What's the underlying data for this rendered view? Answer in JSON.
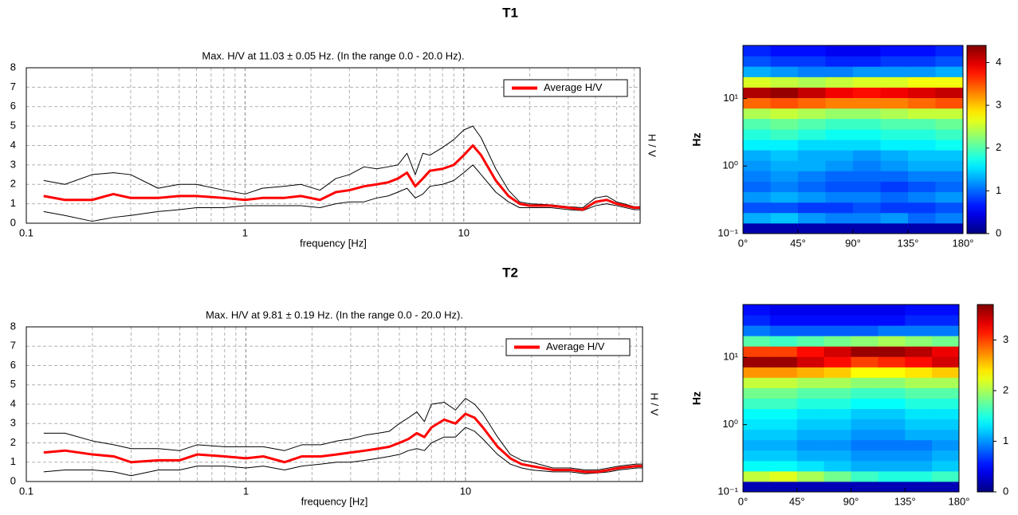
{
  "headings": [
    "T1",
    "T2"
  ],
  "chart_data": [
    {
      "type": "line",
      "title": "Max. H/V at 11.03 ± 0.05 Hz. (In the range 0.0 - 20.0 Hz).",
      "xlabel": "frequency [Hz]",
      "ylabel": "H / V",
      "xscale": "log",
      "xlim": [
        0.1,
        64
      ],
      "xticks": [
        0.1,
        1,
        10
      ],
      "xminorticks": [
        0.2,
        0.3,
        0.4,
        0.5,
        0.6,
        0.7,
        0.8,
        0.9,
        2,
        3,
        4,
        5,
        6,
        7,
        8,
        9,
        20,
        30,
        40,
        50,
        60
      ],
      "ylim": [
        0,
        8
      ],
      "yticks": [
        0,
        1,
        2,
        3,
        4,
        5,
        6,
        7,
        8
      ],
      "grid": true,
      "legend": "upper right",
      "x": [
        0.12,
        0.15,
        0.2,
        0.25,
        0.3,
        0.4,
        0.5,
        0.6,
        0.8,
        1,
        1.2,
        1.5,
        1.8,
        2.2,
        2.6,
        3,
        3.5,
        4,
        4.5,
        5,
        5.5,
        6,
        6.5,
        7,
        8,
        9,
        10,
        11,
        12,
        14,
        16,
        18,
        20,
        25,
        30,
        35,
        40,
        45,
        50,
        60,
        64
      ],
      "series": [
        {
          "color": "#000000",
          "values": [
            0.6,
            0.4,
            0.1,
            0.3,
            0.4,
            0.6,
            0.7,
            0.8,
            0.8,
            0.9,
            0.9,
            0.9,
            0.9,
            0.8,
            1.0,
            1.1,
            1.1,
            1.3,
            1.4,
            1.6,
            1.8,
            1.3,
            1.5,
            1.9,
            2.0,
            2.2,
            2.6,
            3.0,
            2.5,
            1.6,
            1.1,
            0.8,
            0.8,
            0.8,
            0.7,
            0.65,
            0.9,
            1.0,
            0.9,
            0.7,
            0.7
          ]
        },
        {
          "color": "#000000",
          "values": [
            2.2,
            2.0,
            2.5,
            2.6,
            2.5,
            1.8,
            2.0,
            2.0,
            1.7,
            1.5,
            1.8,
            1.9,
            2.0,
            1.7,
            2.3,
            2.5,
            2.9,
            2.8,
            2.9,
            3.0,
            3.6,
            2.5,
            3.6,
            3.5,
            3.9,
            4.3,
            4.8,
            5.0,
            4.4,
            2.8,
            1.7,
            1.1,
            1.0,
            0.95,
            0.85,
            0.8,
            1.3,
            1.4,
            1.1,
            0.85,
            0.85
          ]
        },
        {
          "name": "Average H/V",
          "color": "#ff0000",
          "values": [
            1.4,
            1.2,
            1.2,
            1.5,
            1.3,
            1.3,
            1.4,
            1.4,
            1.3,
            1.2,
            1.3,
            1.3,
            1.4,
            1.2,
            1.6,
            1.7,
            1.9,
            2.0,
            2.1,
            2.3,
            2.6,
            1.9,
            2.3,
            2.7,
            2.8,
            3.0,
            3.5,
            4.0,
            3.5,
            2.2,
            1.4,
            1.0,
            0.9,
            0.9,
            0.8,
            0.7,
            1.1,
            1.2,
            1.0,
            0.8,
            0.8
          ]
        }
      ]
    },
    {
      "type": "heatmap",
      "ylabel": "Hz",
      "yscale": "log",
      "colormap": "jet",
      "xlim": [
        0,
        180
      ],
      "xticks": [
        {
          "value": 0,
          "label": "0°"
        },
        {
          "value": 45,
          "label": "45°"
        },
        {
          "value": 90,
          "label": "90°"
        },
        {
          "value": 135,
          "label": "135°"
        },
        {
          "value": 180,
          "label": "180°"
        }
      ],
      "ylim": [
        0.1,
        61.1
      ],
      "yticks": [
        {
          "value": 0.1,
          "label": "10⁻¹"
        },
        {
          "value": 1,
          "label": "10⁰"
        },
        {
          "value": 10,
          "label": "10¹"
        }
      ],
      "zlim": [
        0,
        4.4
      ],
      "zticks": [
        0,
        1,
        2,
        3,
        4
      ],
      "xbins": [
        0,
        22.5,
        45,
        67.5,
        90,
        112.5,
        135,
        157.5,
        180
      ],
      "ybins": [
        0.1,
        0.143,
        0.204,
        0.291,
        0.416,
        0.594,
        0.849,
        1.21,
        1.73,
        2.47,
        3.53,
        5.05,
        7.2,
        10.3,
        14.7,
        21.0,
        30.0,
        42.8,
        61.1
      ],
      "z": [
        [
          0.2,
          0.2,
          0.2,
          0.2,
          0.2,
          0.2,
          0.2,
          0.2
        ],
        [
          1.3,
          1.4,
          1.2,
          1.1,
          1.1,
          1.2,
          1.0,
          1.1
        ],
        [
          0.9,
          0.9,
          0.8,
          0.8,
          0.9,
          0.8,
          0.8,
          0.9
        ],
        [
          1.2,
          1.3,
          1.2,
          1.1,
          1.1,
          1.0,
          1.1,
          1.2
        ],
        [
          1.0,
          1.1,
          1.0,
          0.9,
          0.9,
          0.8,
          0.9,
          1.0
        ],
        [
          1.1,
          1.2,
          1.1,
          1.0,
          1.0,
          1.0,
          1.1,
          1.1
        ],
        [
          1.2,
          1.3,
          1.3,
          1.2,
          1.1,
          1.2,
          1.3,
          1.3
        ],
        [
          1.3,
          1.4,
          1.3,
          1.3,
          1.2,
          1.3,
          1.4,
          1.4
        ],
        [
          1.6,
          1.6,
          1.5,
          1.5,
          1.5,
          1.6,
          1.6,
          1.7
        ],
        [
          1.8,
          1.9,
          1.8,
          1.7,
          1.7,
          1.8,
          1.8,
          1.9
        ],
        [
          2.0,
          2.1,
          2.0,
          1.9,
          1.9,
          2.0,
          2.0,
          2.1
        ],
        [
          2.4,
          2.5,
          2.4,
          2.3,
          2.3,
          2.4,
          2.5,
          2.5
        ],
        [
          3.4,
          3.5,
          3.4,
          3.3,
          3.3,
          3.3,
          3.4,
          3.5
        ],
        [
          4.2,
          4.3,
          4.1,
          3.9,
          3.8,
          3.9,
          4.0,
          4.1
        ],
        [
          2.6,
          2.5,
          2.4,
          2.5,
          2.6,
          2.6,
          2.7,
          2.7
        ],
        [
          1.3,
          1.2,
          1.1,
          1.1,
          1.2,
          1.2,
          1.2,
          1.3
        ],
        [
          0.9,
          0.8,
          0.8,
          0.7,
          0.7,
          0.8,
          0.8,
          0.9
        ],
        [
          0.7,
          0.6,
          0.6,
          0.5,
          0.5,
          0.6,
          0.6,
          0.7
        ]
      ]
    },
    {
      "type": "line",
      "title": "Max. H/V at 9.81 ± 0.19 Hz. (In the range 0.0 - 20.0 Hz).",
      "xlabel": "frequency [Hz]",
      "ylabel": "H / V",
      "xscale": "log",
      "xlim": [
        0.1,
        64
      ],
      "xticks": [
        0.1,
        1,
        10
      ],
      "xminorticks": [
        0.2,
        0.3,
        0.4,
        0.5,
        0.6,
        0.7,
        0.8,
        0.9,
        2,
        3,
        4,
        5,
        6,
        7,
        8,
        9,
        20,
        30,
        40,
        50,
        60
      ],
      "ylim": [
        0,
        8
      ],
      "yticks": [
        0,
        1,
        2,
        3,
        4,
        5,
        6,
        7,
        8
      ],
      "grid": true,
      "legend": "upper right",
      "x": [
        0.12,
        0.15,
        0.2,
        0.25,
        0.3,
        0.4,
        0.5,
        0.6,
        0.8,
        1,
        1.2,
        1.5,
        1.8,
        2.2,
        2.6,
        3,
        3.5,
        4,
        4.5,
        5,
        5.5,
        6,
        6.5,
        7,
        8,
        9,
        10,
        11,
        12,
        14,
        16,
        18,
        20,
        25,
        30,
        35,
        40,
        45,
        50,
        60,
        64
      ],
      "series": [
        {
          "color": "#000000",
          "values": [
            0.5,
            0.6,
            0.6,
            0.5,
            0.3,
            0.6,
            0.6,
            0.8,
            0.8,
            0.7,
            0.8,
            0.6,
            0.8,
            0.9,
            1.0,
            1.0,
            1.1,
            1.2,
            1.3,
            1.4,
            1.6,
            1.7,
            1.6,
            2.0,
            2.3,
            2.3,
            2.8,
            2.6,
            2.2,
            1.4,
            0.9,
            0.7,
            0.6,
            0.5,
            0.5,
            0.4,
            0.45,
            0.5,
            0.6,
            0.7,
            0.7
          ]
        },
        {
          "color": "#000000",
          "values": [
            2.5,
            2.5,
            2.1,
            1.9,
            1.7,
            1.7,
            1.6,
            1.9,
            1.8,
            1.8,
            1.8,
            1.6,
            1.9,
            1.9,
            2.1,
            2.2,
            2.4,
            2.5,
            2.6,
            3.0,
            3.3,
            3.6,
            3.1,
            4.0,
            4.1,
            3.7,
            4.3,
            4.0,
            3.5,
            2.3,
            1.4,
            1.1,
            1.0,
            0.7,
            0.7,
            0.6,
            0.6,
            0.7,
            0.8,
            0.9,
            0.9
          ]
        },
        {
          "name": "Average H/V",
          "color": "#ff0000",
          "values": [
            1.5,
            1.6,
            1.4,
            1.3,
            1.0,
            1.1,
            1.1,
            1.4,
            1.3,
            1.2,
            1.3,
            1.0,
            1.3,
            1.3,
            1.4,
            1.5,
            1.6,
            1.7,
            1.8,
            2.0,
            2.2,
            2.5,
            2.3,
            2.8,
            3.2,
            3.0,
            3.5,
            3.3,
            2.8,
            1.8,
            1.2,
            0.9,
            0.8,
            0.6,
            0.6,
            0.5,
            0.5,
            0.6,
            0.7,
            0.8,
            0.8
          ]
        }
      ]
    },
    {
      "type": "heatmap",
      "ylabel": "Hz",
      "yscale": "log",
      "colormap": "jet",
      "xlim": [
        0,
        180
      ],
      "xticks": [
        {
          "value": 0,
          "label": "0°"
        },
        {
          "value": 45,
          "label": "45°"
        },
        {
          "value": 90,
          "label": "90°"
        },
        {
          "value": 135,
          "label": "135°"
        },
        {
          "value": 180,
          "label": "180°"
        }
      ],
      "ylim": [
        0.1,
        61.1
      ],
      "yticks": [
        {
          "value": 0.1,
          "label": "10⁻¹"
        },
        {
          "value": 1,
          "label": "10⁰"
        },
        {
          "value": 10,
          "label": "10¹"
        }
      ],
      "zlim": [
        0,
        3.7
      ],
      "zticks": [
        0,
        1,
        2,
        3
      ],
      "xbins": [
        0,
        22.5,
        45,
        67.5,
        90,
        112.5,
        135,
        157.5,
        180
      ],
      "ybins": [
        0.1,
        0.143,
        0.204,
        0.291,
        0.416,
        0.594,
        0.849,
        1.21,
        1.73,
        2.47,
        3.53,
        5.05,
        7.2,
        10.3,
        14.7,
        21.0,
        30.0,
        42.8,
        61.1
      ],
      "z": [
        [
          0.2,
          0.2,
          0.2,
          0.2,
          0.2,
          0.2,
          0.2,
          0.2
        ],
        [
          2.1,
          2.2,
          2.0,
          1.8,
          1.6,
          1.5,
          1.5,
          1.6
        ],
        [
          1.4,
          1.4,
          1.3,
          1.2,
          1.1,
          1.1,
          1.1,
          1.2
        ],
        [
          1.2,
          1.2,
          1.1,
          1.1,
          1.0,
          1.0,
          1.0,
          1.1
        ],
        [
          1.1,
          1.1,
          1.0,
          1.0,
          0.9,
          0.9,
          0.9,
          1.0
        ],
        [
          1.2,
          1.2,
          1.1,
          1.1,
          1.0,
          1.0,
          1.1,
          1.1
        ],
        [
          1.3,
          1.3,
          1.2,
          1.2,
          1.1,
          1.1,
          1.2,
          1.2
        ],
        [
          1.4,
          1.4,
          1.3,
          1.3,
          1.2,
          1.2,
          1.3,
          1.3
        ],
        [
          1.6,
          1.6,
          1.5,
          1.5,
          1.4,
          1.4,
          1.5,
          1.5
        ],
        [
          1.8,
          1.8,
          1.7,
          1.7,
          1.6,
          1.6,
          1.7,
          1.7
        ],
        [
          2.1,
          2.1,
          2.0,
          2.0,
          1.9,
          1.9,
          2.0,
          2.0
        ],
        [
          2.7,
          2.7,
          2.6,
          2.5,
          2.3,
          2.3,
          2.4,
          2.5
        ],
        [
          3.6,
          3.6,
          3.4,
          3.2,
          3.0,
          3.1,
          3.2,
          3.4
        ],
        [
          3.0,
          3.0,
          3.2,
          3.4,
          3.6,
          3.6,
          3.5,
          3.3
        ],
        [
          1.7,
          1.6,
          1.7,
          1.8,
          1.9,
          2.0,
          1.9,
          1.8
        ],
        [
          0.9,
          0.8,
          0.8,
          0.8,
          0.8,
          0.9,
          0.9,
          0.9
        ],
        [
          0.6,
          0.5,
          0.5,
          0.5,
          0.5,
          0.5,
          0.6,
          0.6
        ],
        [
          0.5,
          0.4,
          0.4,
          0.4,
          0.4,
          0.4,
          0.5,
          0.5
        ]
      ]
    }
  ]
}
